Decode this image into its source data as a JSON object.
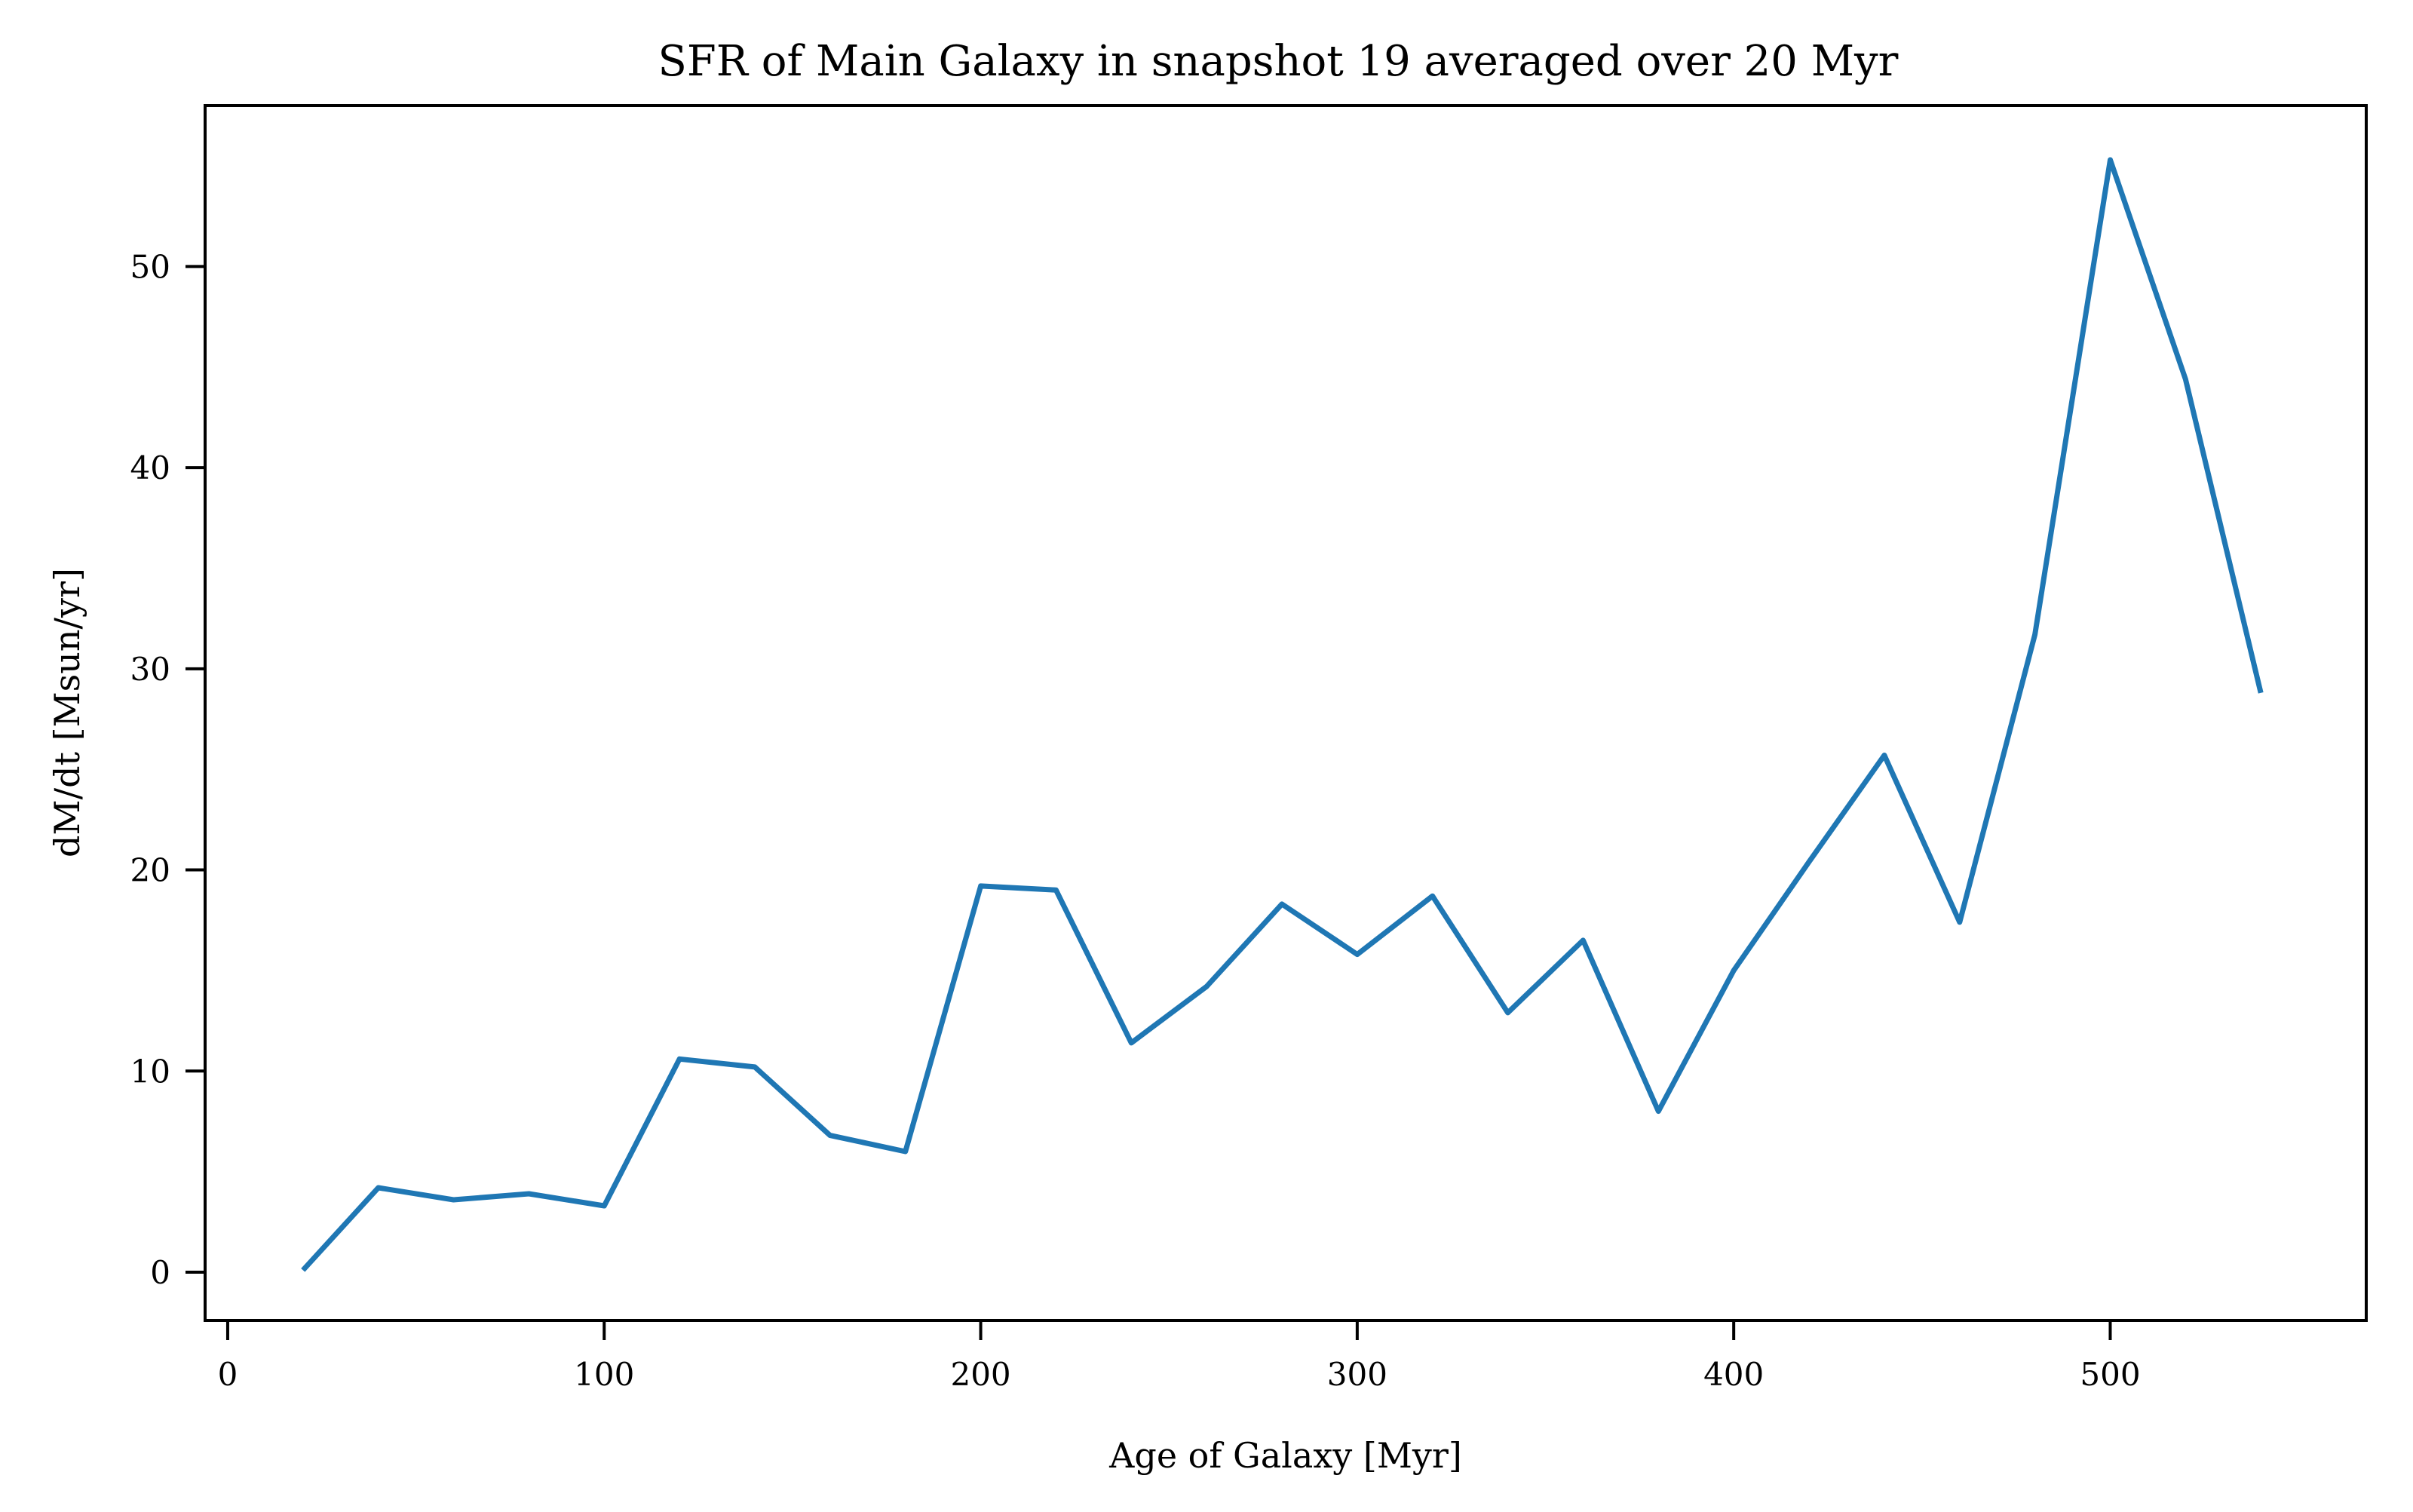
{
  "chart_data": {
    "type": "line",
    "title": "SFR of Main Galaxy in snapshot 19 averaged over 20 Myr",
    "xlabel": "Age of Galaxy [Myr]",
    "ylabel": "dM/dt [Msun/yr]",
    "xlim": [
      -6,
      568
    ],
    "ylim": [
      -2.4,
      58.0
    ],
    "x_ticks": [
      0,
      100,
      200,
      300,
      400,
      500
    ],
    "y_ticks": [
      0,
      10,
      20,
      30,
      40,
      50
    ],
    "grid": false,
    "legend": "none",
    "series": [
      {
        "color": "#1f77b4",
        "x": [
          20,
          40,
          60,
          80,
          100,
          120,
          140,
          160,
          180,
          200,
          220,
          240,
          260,
          280,
          300,
          320,
          340,
          360,
          380,
          400,
          420,
          440,
          460,
          480,
          500,
          520,
          540
        ],
        "y": [
          0.1,
          4.2,
          3.6,
          3.9,
          3.3,
          10.6,
          10.2,
          6.8,
          6.0,
          19.2,
          19.0,
          11.4,
          14.2,
          18.3,
          15.8,
          18.7,
          12.9,
          16.5,
          8.0,
          15.0,
          20.4,
          25.7,
          17.4,
          31.7,
          55.3,
          44.4,
          28.8
        ]
      }
    ]
  }
}
